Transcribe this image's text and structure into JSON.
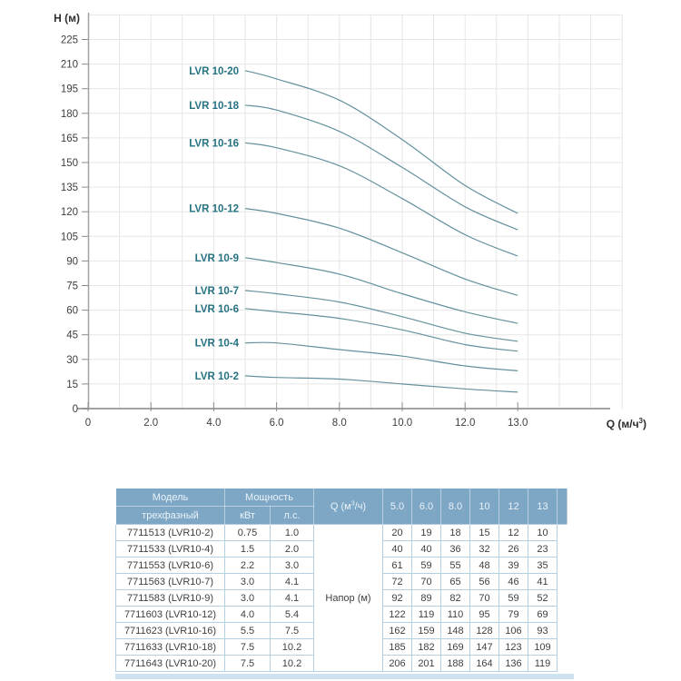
{
  "chart_data": {
    "type": "line",
    "title": "",
    "ylabel": "Н (м)",
    "xlabel_base": "Q (м/ч",
    "xlabel_sup": "3",
    "xlabel_end": ")",
    "x": [
      5.0,
      6.0,
      8.0,
      10,
      12,
      13
    ],
    "x_tick_values": [
      0,
      2,
      4,
      6,
      8,
      10,
      12,
      13
    ],
    "x_tick_labels": [
      "0",
      "2.0",
      "4.0",
      "6.0",
      "8.0",
      "10.0",
      "12.0",
      "13.0"
    ],
    "y_ticks": [
      0,
      15,
      30,
      45,
      60,
      75,
      90,
      105,
      120,
      135,
      150,
      165,
      180,
      195,
      210,
      225
    ],
    "ylim": [
      0,
      240
    ],
    "grid": true,
    "legend_position": "inline-left-of-curve",
    "series": [
      {
        "name": "LVR 10-2",
        "values": [
          20,
          19,
          18,
          15,
          12,
          10
        ]
      },
      {
        "name": "LVR 10-4",
        "values": [
          40,
          40,
          36,
          32,
          26,
          23
        ]
      },
      {
        "name": "LVR 10-6",
        "values": [
          61,
          59,
          55,
          48,
          39,
          35
        ]
      },
      {
        "name": "LVR 10-7",
        "values": [
          72,
          70,
          65,
          56,
          46,
          41
        ]
      },
      {
        "name": "LVR 10-9",
        "values": [
          92,
          89,
          82,
          70,
          59,
          52
        ]
      },
      {
        "name": "LVR 10-12",
        "values": [
          122,
          119,
          110,
          95,
          79,
          69
        ]
      },
      {
        "name": "LVR 10-16",
        "values": [
          162,
          159,
          148,
          128,
          106,
          93
        ]
      },
      {
        "name": "LVR 10-18",
        "values": [
          185,
          182,
          169,
          147,
          123,
          109
        ]
      },
      {
        "name": "LVR 10-20",
        "values": [
          206,
          201,
          188,
          164,
          136,
          119
        ]
      }
    ],
    "colors": {
      "curve": "#64919d",
      "curve_label": "#257283",
      "grid": "#e6e6e6",
      "axis": "#a2a2a2",
      "tick": "#8a8a8a",
      "tick_text": "#3e3e3e",
      "axis_label": "#2e2e2e"
    }
  },
  "table": {
    "header": {
      "model": "Модель",
      "model_sub": "трехфазный",
      "power": "Мощность",
      "kw": "кВт",
      "hp": "л.с.",
      "q_base": "Q (м",
      "q_sup": "3",
      "q_end": "/ч)",
      "flow_cols": [
        "5.0",
        "6.0",
        "8.0",
        "10",
        "12",
        "13"
      ]
    },
    "napor_label": "Напор (м)",
    "rows": [
      {
        "model": "7711513 (LVR10-2)",
        "kw": "0.75",
        "hp": "1.0",
        "heads": [
          "20",
          "19",
          "18",
          "15",
          "12",
          "10"
        ]
      },
      {
        "model": "7711533 (LVR10-4)",
        "kw": "1.5",
        "hp": "2.0",
        "heads": [
          "40",
          "40",
          "36",
          "32",
          "26",
          "23"
        ]
      },
      {
        "model": "7711553 (LVR10-6)",
        "kw": "2.2",
        "hp": "3.0",
        "heads": [
          "61",
          "59",
          "55",
          "48",
          "39",
          "35"
        ]
      },
      {
        "model": "7711563 (LVR10-7)",
        "kw": "3.0",
        "hp": "4.1",
        "heads": [
          "72",
          "70",
          "65",
          "56",
          "46",
          "41"
        ]
      },
      {
        "model": "7711583 (LVR10-9)",
        "kw": "3.0",
        "hp": "4.1",
        "heads": [
          "92",
          "89",
          "82",
          "70",
          "59",
          "52"
        ]
      },
      {
        "model": "7711603 (LVR10-12)",
        "kw": "4.0",
        "hp": "5.4",
        "heads": [
          "122",
          "119",
          "110",
          "95",
          "79",
          "69"
        ]
      },
      {
        "model": "7711623 (LVR10-16)",
        "kw": "5.5",
        "hp": "7.5",
        "heads": [
          "162",
          "159",
          "148",
          "128",
          "106",
          "93"
        ]
      },
      {
        "model": "7711633 (LVR10-18)",
        "kw": "7.5",
        "hp": "10.2",
        "heads": [
          "185",
          "182",
          "169",
          "147",
          "123",
          "109"
        ]
      },
      {
        "model": "7711643 (LVR10-20)",
        "kw": "7.5",
        "hp": "10.2",
        "heads": [
          "206",
          "201",
          "188",
          "164",
          "136",
          "119"
        ]
      }
    ],
    "colors": {
      "header_bg": "#7ea7c5",
      "header_text": "#eaf3f9",
      "row_border": "#b5d0e2",
      "row_text": "#3f3f3f",
      "strip": "#cfe2ef"
    }
  }
}
